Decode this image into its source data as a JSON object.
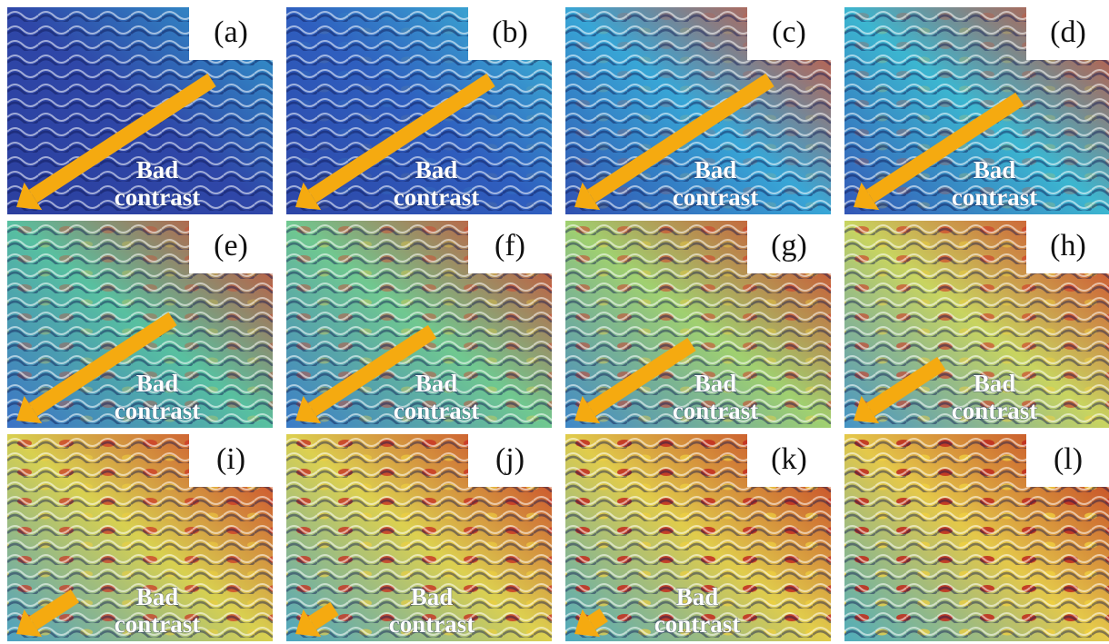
{
  "panels": [
    {
      "label": "(a)",
      "note": [
        "Bad",
        "contrast"
      ]
    },
    {
      "label": "(b)",
      "note": [
        "Bad",
        "contrast"
      ]
    },
    {
      "label": "(c)",
      "note": [
        "Bad",
        "contrast"
      ]
    },
    {
      "label": "(d)",
      "note": [
        "Bad",
        "contrast"
      ]
    },
    {
      "label": "(e)",
      "note": [
        "Bad",
        "contrast"
      ]
    },
    {
      "label": "(f)",
      "note": [
        "Bad",
        "contrast"
      ]
    },
    {
      "label": "(g)",
      "note": [
        "Bad",
        "contrast"
      ]
    },
    {
      "label": "(h)",
      "note": [
        "Bad",
        "contrast"
      ]
    },
    {
      "label": "(i)",
      "note": [
        "Bad",
        "contrast"
      ]
    },
    {
      "label": "(j)",
      "note": [
        "Bad",
        "contrast"
      ]
    },
    {
      "label": "(k)",
      "note": [
        "Bad",
        "contrast"
      ]
    },
    {
      "label": "(l)"
    }
  ]
}
